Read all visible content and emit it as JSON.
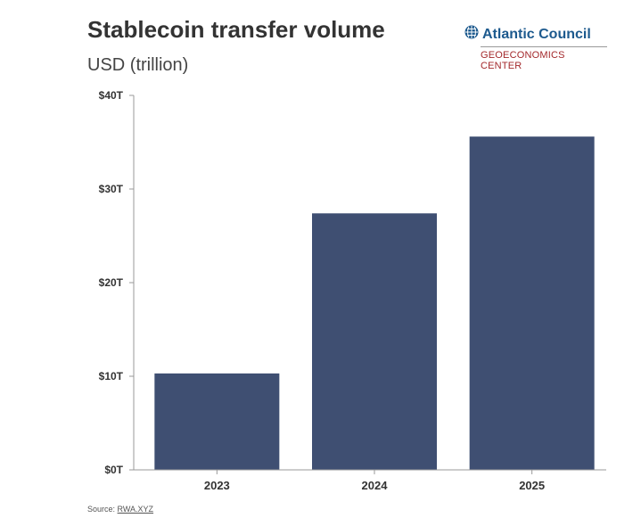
{
  "header": {
    "title": "Stablecoin transfer volume",
    "subtitle": "USD (trillion)"
  },
  "logo": {
    "name": "Atlantic Council",
    "subname": "GEOECONOMICS CENTER",
    "icon": "globe-icon"
  },
  "source": {
    "label": "Source:",
    "link": "RWA.XYZ"
  },
  "colors": {
    "bar": "#3f4f72",
    "axis": "#999999"
  },
  "chart_data": {
    "type": "bar",
    "title": "Stablecoin transfer volume",
    "subtitle": "USD (trillion)",
    "xlabel": "",
    "ylabel": "USD (trillion)",
    "categories": [
      "2023",
      "2024",
      "2025"
    ],
    "values": [
      10.3,
      27.4,
      35.6
    ],
    "ylim": [
      0,
      40
    ],
    "yticks": [
      0,
      10,
      20,
      30,
      40
    ],
    "ytick_labels": [
      "$0T",
      "$10T",
      "$20T",
      "$30T",
      "$40T"
    ],
    "grid": false,
    "legend": "none"
  }
}
